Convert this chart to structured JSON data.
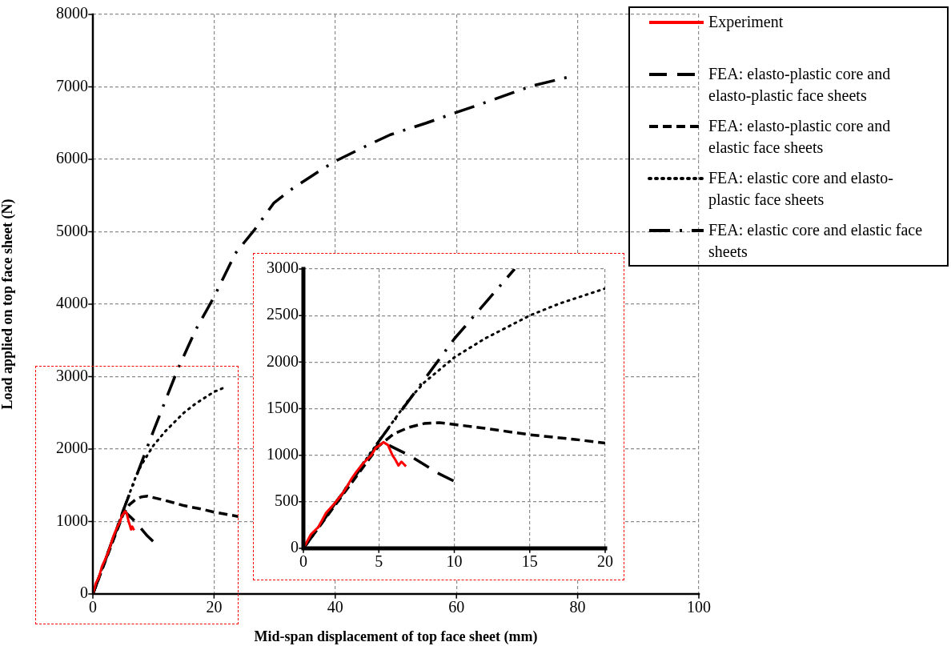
{
  "chart_data": [
    {
      "type": "line",
      "xlabel": "Mid-span displacement of top face sheet (mm)",
      "ylabel": "Load applied on top face sheet (N)",
      "xlim": [
        0,
        100
      ],
      "ylim": [
        0,
        8000
      ],
      "xticks": [
        0,
        20,
        40,
        60,
        80,
        100
      ],
      "yticks": [
        0,
        1000,
        2000,
        3000,
        4000,
        5000,
        6000,
        7000,
        8000
      ],
      "grid": true,
      "legend": "top right",
      "marker": "none",
      "series": [
        {
          "name": "Experiment",
          "color": "#ff0000",
          "line_style": "solid",
          "x": [
            0,
            0.5,
            1,
            1.5,
            2,
            2.5,
            2.8,
            3.2,
            3.5,
            4,
            4.5,
            4.8,
            5,
            5.3,
            5.6,
            5.9,
            6.1,
            6.3,
            6.5,
            6.8
          ],
          "values": [
            0,
            150,
            230,
            380,
            470,
            570,
            640,
            750,
            820,
            920,
            1000,
            1080,
            1100,
            1140,
            1110,
            1000,
            950,
            890,
            930,
            880
          ]
        },
        {
          "name": "FEA: elasto-plastic core and elasto-plastic face sheets",
          "color": "#000000",
          "line_style": "longdash",
          "x": [
            0,
            5,
            5.5,
            7,
            8,
            9,
            10
          ],
          "values": [
            0,
            1130,
            1120,
            1000,
            900,
            800,
            720
          ]
        },
        {
          "name": "FEA: elasto-plastic core and elastic face sheets",
          "color": "#000000",
          "line_style": "dashed",
          "x": [
            0,
            5,
            6,
            7,
            8,
            9,
            10,
            12,
            15,
            18,
            20,
            24
          ],
          "values": [
            0,
            1100,
            1230,
            1300,
            1340,
            1350,
            1330,
            1290,
            1220,
            1170,
            1130,
            1070
          ]
        },
        {
          "name": "FEA: elastic core and elasto-plastic face sheets",
          "color": "#000000",
          "line_style": "dotted",
          "x": [
            0,
            5,
            7,
            8,
            10,
            12,
            15,
            17,
            20,
            22
          ],
          "values": [
            0,
            1150,
            1600,
            1780,
            2050,
            2250,
            2500,
            2630,
            2790,
            2860
          ]
        },
        {
          "name": "FEA: elastic core and elastic face sheets",
          "color": "#000000",
          "line_style": "dashdot",
          "x": [
            0,
            5,
            10,
            14,
            17,
            20,
            23.5,
            26.7,
            29.9,
            33,
            36.3,
            39.9,
            45,
            49.1,
            55,
            60.1,
            66,
            72.3,
            78.7
          ],
          "values": [
            0,
            1150,
            2250,
            3100,
            3650,
            4100,
            4700,
            5030,
            5400,
            5600,
            5780,
            5970,
            6180,
            6340,
            6500,
            6650,
            6820,
            7010,
            7140
          ]
        }
      ]
    },
    {
      "type": "line",
      "xlim": [
        0,
        20
      ],
      "ylim": [
        0,
        3000
      ],
      "xticks": [
        0,
        5,
        10,
        15,
        20
      ],
      "yticks": [
        0,
        500,
        1000,
        1500,
        2000,
        2500,
        3000
      ],
      "grid": true,
      "marker": "none",
      "series": [
        {
          "color": "#ff0000",
          "line_style": "solid",
          "x": [
            0,
            0.5,
            1,
            1.5,
            2,
            2.5,
            2.8,
            3.2,
            3.5,
            4,
            4.5,
            4.8,
            5,
            5.3,
            5.6,
            5.9,
            6.1,
            6.3,
            6.5,
            6.8
          ],
          "values": [
            0,
            150,
            230,
            380,
            470,
            570,
            640,
            750,
            820,
            920,
            1000,
            1080,
            1100,
            1140,
            1110,
            1000,
            950,
            890,
            930,
            880
          ]
        },
        {
          "color": "#000000",
          "line_style": "longdash",
          "x": [
            0,
            5,
            5.5,
            7,
            8,
            9,
            10
          ],
          "values": [
            0,
            1130,
            1120,
            1000,
            900,
            800,
            720
          ]
        },
        {
          "color": "#000000",
          "line_style": "dashed",
          "x": [
            0,
            5,
            6,
            7,
            8,
            9,
            10,
            12,
            15,
            18,
            20
          ],
          "values": [
            0,
            1100,
            1230,
            1300,
            1340,
            1350,
            1330,
            1290,
            1220,
            1170,
            1130
          ]
        },
        {
          "color": "#000000",
          "line_style": "dotted",
          "x": [
            0,
            5,
            7,
            8,
            10,
            12,
            15,
            17,
            20
          ],
          "values": [
            0,
            1150,
            1600,
            1780,
            2050,
            2250,
            2500,
            2630,
            2790
          ]
        },
        {
          "color": "#000000",
          "line_style": "dashdot",
          "x": [
            0,
            5,
            10,
            14
          ],
          "values": [
            0,
            1150,
            2250,
            3000
          ]
        }
      ]
    }
  ]
}
